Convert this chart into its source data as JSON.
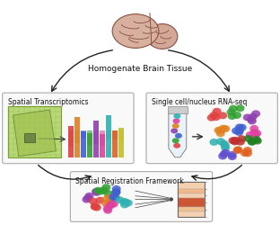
{
  "bg_color": "#ffffff",
  "arrow_color": "#222222",
  "labels": {
    "brain": "Homogenate Brain Tissue",
    "left_box": "Spatial Transcriptomics",
    "right_box": "Single cell/nucleus RNA-seq",
    "bottom_box": "Spatial Registration Framework"
  },
  "brain_fill": "#d4a090",
  "brain_edge": "#8a5040",
  "box_face": "#f9f9f9",
  "box_edge": "#aaaaaa",
  "cell_colors_scattered": [
    "#e04040",
    "#e08020",
    "#30a030",
    "#4060d0",
    "#9040b0",
    "#e040a0",
    "#30b0b0",
    "#e06020",
    "#5050e0"
  ],
  "cluster_colors": [
    "#9040b0",
    "#30a030",
    "#e04040",
    "#4060d0",
    "#e08020",
    "#30b0b0",
    "#e040a0",
    "#c03030",
    "#208020"
  ],
  "heatmap_colors": [
    "#f5cca8",
    "#f5cca8",
    "#e0745040",
    "#f0b080",
    "#cc4422",
    "#f5cca8"
  ],
  "figsize": [
    3.12,
    2.5
  ],
  "dpi": 100
}
